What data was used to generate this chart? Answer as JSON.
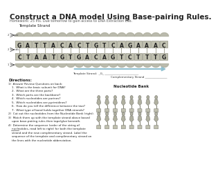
{
  "title": "Construct a DNA model Using Base-pairing Rules.",
  "subtitle": "Homework: 25 Pts. Due tomorrow to gain access to DNA Extraction Lab.",
  "template_strand_label": "Template Strand",
  "template_bases": [
    "G",
    "A",
    "T",
    "T",
    "A",
    "C",
    "A",
    "C",
    "T",
    "G",
    "T",
    "C",
    "A",
    "G",
    "A",
    "A",
    "A",
    "C"
  ],
  "complement_bases": [
    "C",
    "T",
    "A",
    "A",
    "T",
    "G",
    "T",
    "G",
    "A",
    "C",
    "A",
    "G",
    "T",
    "C",
    "T",
    "T",
    "T",
    "G"
  ],
  "label_2sugar": "2 sugar",
  "label_2bonds": "2 bonds",
  "label_1nuc": "1 nuc",
  "directions_title": "Directions:",
  "directions": [
    "1)  Answer Review Questions on back:",
    "    1.  What is the basic subunit for DNA?",
    "    2.  What are the three parts?",
    "    3.  Which parts are the backbone?",
    "    4.  Which nucleotides are purines?",
    "    5.  Which nucleotides are pyrimidines?",
    "    6.  How do you tell the difference between the two?",
    "    7.  What type of bond holds together DNA strands?",
    "2)  Cut out the nucleotides from the Nucleotide Bank (right).",
    "3)  Match them up with the template strand above based",
    "    upon base-pairing rules then tape/glue beneath.",
    "4)  Determine the sequence (order of the string of",
    "    nucleotides, read left to right) for both the template",
    "    strand and the new complimentary strand. Label the",
    "    sequence of the template and complimentary strand on",
    "    the lines with the nucleotide abbreviation."
  ],
  "underline_line_idx": 12,
  "complementary_label": "Complementary Strand",
  "template_strand_bottom_label": "Template Strand:  _G_",
  "nucleotide_bank_label": "Nucleotide Bank",
  "backbone_color": "#b0b0a0",
  "base_color": "#c0c0b0",
  "text_color": "#222222",
  "arrow_color": "#90c0d0"
}
